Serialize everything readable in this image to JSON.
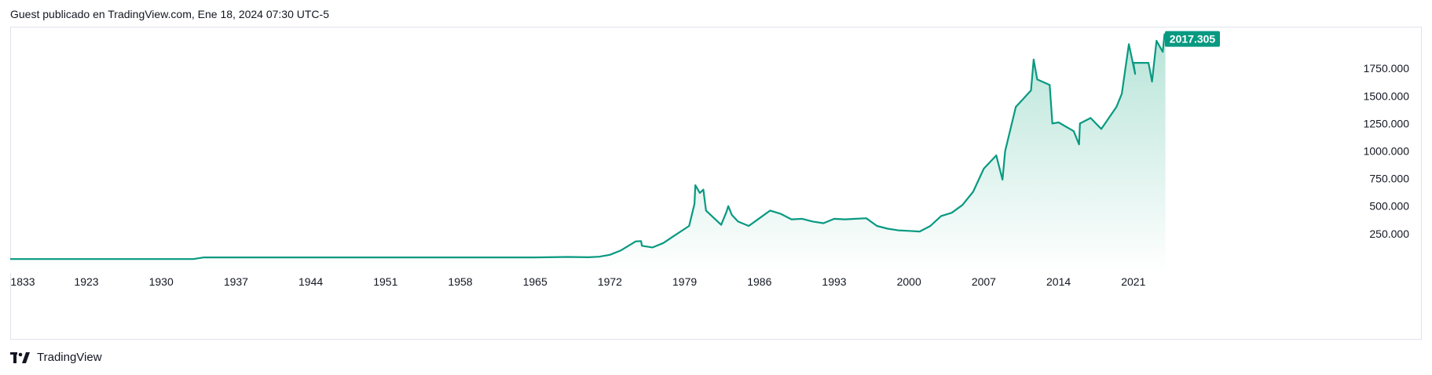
{
  "header": {
    "published_text": "Guest publicado en TradingView.com, Ene 18, 2024 07:30 UTC-5"
  },
  "footer": {
    "brand": "TradingView",
    "logo_icon": "tradingview-logo-icon"
  },
  "colors": {
    "line": "#089981",
    "area_top": "#b7e4d8",
    "area_bottom": "#ffffff",
    "price_tag": "#089981"
  },
  "chart_data": {
    "type": "area",
    "title": "",
    "xlabel": "",
    "ylabel": "",
    "x_ticks": [
      "1833",
      "1923",
      "1930",
      "1937",
      "1944",
      "1951",
      "1958",
      "1965",
      "1972",
      "1979",
      "1986",
      "1993",
      "2000",
      "2007",
      "2014",
      "2021"
    ],
    "y_ticks": [
      "250.000",
      "500.000",
      "750.000",
      "1000.000",
      "1250.000",
      "1500.000",
      "1750.000"
    ],
    "y_tick_values": [
      250,
      500,
      750,
      1000,
      1250,
      1500,
      1750
    ],
    "ylim": [
      -50,
      2100
    ],
    "last_price": 2017.305,
    "last_price_label": "2017.305",
    "grid": false,
    "series": [
      {
        "x": [
          "1833",
          "1900",
          "1915",
          "1923",
          "1933",
          "1934",
          "1940",
          "1944",
          "1951",
          "1958",
          "1965",
          "1968",
          "1970",
          "1971",
          "1972",
          "1973",
          "1974-06",
          "1974-12",
          "1975",
          "1976",
          "1977",
          "1978",
          "1979-06",
          "1979-12",
          "1980-01",
          "1980-06",
          "1980-10",
          "1981",
          "1982-06",
          "1982-12",
          "1983-02",
          "1983-06",
          "1984",
          "1985",
          "1986",
          "1987",
          "1988",
          "1989",
          "1990",
          "1991",
          "1992",
          "1993",
          "1994",
          "1995",
          "1996",
          "1997",
          "1998",
          "1999",
          "2000",
          "2001",
          "2002",
          "2003",
          "2004",
          "2005",
          "2006",
          "2007",
          "2008-03",
          "2008-10",
          "2009",
          "2010",
          "2011-06",
          "2011-09",
          "2012",
          "2013-03",
          "2013-06",
          "2014",
          "2015-06",
          "2015-12",
          "2016",
          "2017",
          "2018",
          "2019-06",
          "2019-12",
          "2020-08",
          "2021-03",
          "2021",
          "2022-06",
          "2022-10",
          "2023-03",
          "2023-10",
          "2023-12",
          "2024-01"
        ],
        "values": [
          20,
          20,
          20,
          20,
          20,
          35,
          35,
          35,
          35,
          35,
          35,
          39,
          36,
          41,
          58,
          97,
          180,
          183,
          140,
          125,
          165,
          230,
          320,
          520,
          690,
          620,
          650,
          460,
          330,
          450,
          500,
          420,
          360,
          320,
          390,
          460,
          430,
          380,
          385,
          360,
          345,
          385,
          380,
          385,
          390,
          320,
          295,
          280,
          275,
          270,
          320,
          410,
          440,
          510,
          630,
          840,
          960,
          740,
          1000,
          1400,
          1550,
          1830,
          1650,
          1600,
          1250,
          1260,
          1180,
          1060,
          1250,
          1300,
          1200,
          1400,
          1520,
          1970,
          1700,
          1800,
          1800,
          1630,
          2000,
          1900,
          2060,
          2017
        ]
      }
    ]
  }
}
